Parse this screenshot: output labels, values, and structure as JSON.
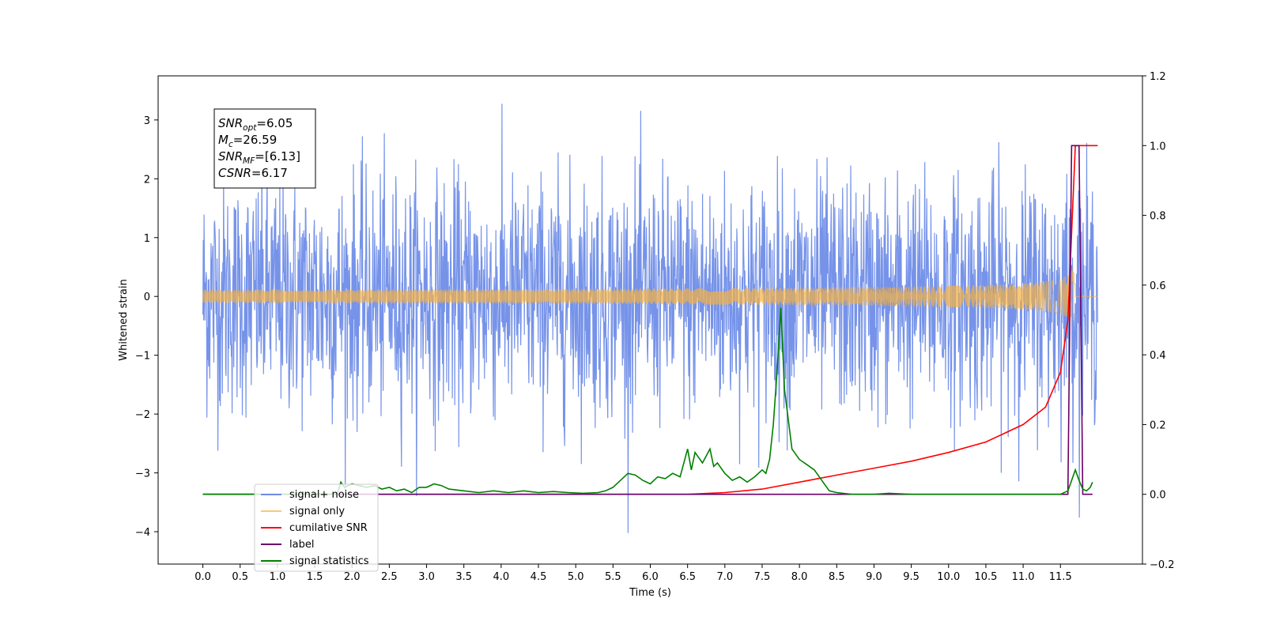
{
  "chart_data": {
    "type": "line",
    "xlabel": "Time (s)",
    "ylabel_left": "Whitened strain",
    "xlim": [
      -0.6,
      12.6
    ],
    "ylim_left": [
      -4.55,
      3.75
    ],
    "ylim_right": [
      -0.2,
      1.2
    ],
    "x_ticks": [
      "0.0",
      "0.5",
      "1.0",
      "1.5",
      "2.0",
      "2.5",
      "3.0",
      "3.5",
      "4.0",
      "4.5",
      "5.0",
      "5.5",
      "6.0",
      "6.5",
      "7.0",
      "7.5",
      "8.0",
      "8.5",
      "9.0",
      "9.5",
      "10.0",
      "10.5",
      "11.0",
      "11.5"
    ],
    "y_ticks_left": [
      "3",
      "2",
      "1",
      "0",
      "−1",
      "−2",
      "−3",
      "−4"
    ],
    "y_ticks_right": [
      "1.2",
      "1.0",
      "0.8",
      "0.6",
      "0.4",
      "0.2",
      "0.0",
      "−0.2"
    ],
    "grid": false,
    "legend_position": "lower-left",
    "info_box": {
      "lines": [
        {
          "sym": "SNR",
          "sub": "opt",
          "value": "=6.05"
        },
        {
          "sym": "M",
          "sub": "c",
          "value": "=26.59"
        },
        {
          "sym": "SNR",
          "sub": "MF",
          "value": "=[6.13]"
        },
        {
          "sym": "CSNR",
          "sub": "",
          "value": "=6.17"
        }
      ]
    },
    "series": [
      {
        "name": "signal+ noise",
        "axis": "left",
        "color": "#6f8de8",
        "x_range": [
          0.0,
          12.0
        ],
        "amplitude_typical": 1.0,
        "min": -4.1,
        "max": 3.4
      },
      {
        "name": "signal only",
        "axis": "left",
        "color": "#f5b041",
        "x_range": [
          0.0,
          12.0
        ],
        "peak_time": 11.7,
        "peak_amplitude": 0.55
      },
      {
        "name": "cumilative SNR",
        "axis": "right",
        "color": "#ff0000",
        "x": [
          0.0,
          6.5,
          7.0,
          7.5,
          8.0,
          8.5,
          9.0,
          9.5,
          10.0,
          10.5,
          11.0,
          11.3,
          11.5,
          11.6,
          11.7,
          12.0
        ],
        "y": [
          0.0,
          0.0,
          0.005,
          0.015,
          0.035,
          0.055,
          0.075,
          0.095,
          0.12,
          0.15,
          0.2,
          0.25,
          0.35,
          0.5,
          1.0,
          1.0
        ]
      },
      {
        "name": "label",
        "axis": "right",
        "color": "#6a006a",
        "x": [
          0.0,
          11.6,
          11.65,
          11.75,
          11.8,
          11.93
        ],
        "y": [
          0.0,
          0.0,
          1.0,
          1.0,
          0.0,
          0.0
        ]
      },
      {
        "name": "signal statistics",
        "axis": "right",
        "color": "#008000",
        "x": [
          0.0,
          1.8,
          1.85,
          1.9,
          2.0,
          2.1,
          2.2,
          2.3,
          2.4,
          2.5,
          2.6,
          2.7,
          2.8,
          2.9,
          3.0,
          3.1,
          3.2,
          3.3,
          3.5,
          3.7,
          3.9,
          4.1,
          4.3,
          4.5,
          4.7,
          4.9,
          5.1,
          5.3,
          5.4,
          5.5,
          5.6,
          5.7,
          5.8,
          5.9,
          6.0,
          6.1,
          6.2,
          6.3,
          6.4,
          6.5,
          6.55,
          6.6,
          6.7,
          6.8,
          6.85,
          6.9,
          7.0,
          7.1,
          7.2,
          7.3,
          7.4,
          7.5,
          7.55,
          7.6,
          7.65,
          7.7,
          7.75,
          7.8,
          7.9,
          8.0,
          8.1,
          8.2,
          8.3,
          8.4,
          8.5,
          8.7,
          9.0,
          9.2,
          9.5,
          9.8,
          10.0,
          10.5,
          11.0,
          11.5,
          11.6,
          11.65,
          11.7,
          11.75,
          11.8,
          11.85,
          11.9,
          11.93
        ],
        "y": [
          0.0,
          0.0,
          0.035,
          0.02,
          0.03,
          0.025,
          0.02,
          0.025,
          0.015,
          0.02,
          0.01,
          0.015,
          0.005,
          0.02,
          0.02,
          0.03,
          0.025,
          0.015,
          0.01,
          0.005,
          0.01,
          0.005,
          0.01,
          0.005,
          0.008,
          0.005,
          0.003,
          0.005,
          0.01,
          0.02,
          0.04,
          0.06,
          0.055,
          0.04,
          0.03,
          0.05,
          0.045,
          0.06,
          0.05,
          0.13,
          0.07,
          0.12,
          0.09,
          0.13,
          0.08,
          0.09,
          0.06,
          0.04,
          0.05,
          0.035,
          0.05,
          0.07,
          0.06,
          0.1,
          0.2,
          0.35,
          0.535,
          0.3,
          0.13,
          0.1,
          0.085,
          0.07,
          0.04,
          0.01,
          0.005,
          0.0,
          0.0,
          0.003,
          0.0,
          0.0,
          0.0,
          0.0,
          0.0,
          0.0,
          0.01,
          0.04,
          0.07,
          0.04,
          0.015,
          0.01,
          0.02,
          0.035
        ]
      }
    ]
  }
}
